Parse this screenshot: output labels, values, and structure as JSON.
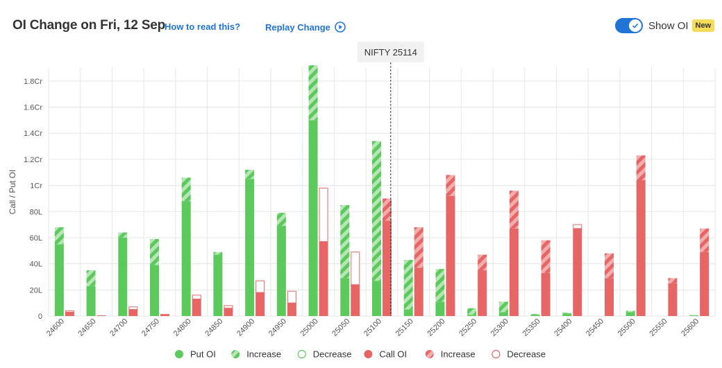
{
  "header": {
    "title": "OI Change on Fri, 12 Sep",
    "how_to_read": "How to read this?",
    "replay": "Replay Change",
    "toggle_label": "Show OI",
    "badge": "New"
  },
  "chart_data": {
    "type": "bar",
    "ylabel": "Call / Put OI",
    "spot_label": "NIFTY 25114",
    "spot_value": 25114,
    "ylim": [
      0,
      1.9
    ],
    "y_unit": "Cr",
    "y_ticks": [
      {
        "v": 0,
        "label": "0"
      },
      {
        "v": 0.2,
        "label": "20L"
      },
      {
        "v": 0.4,
        "label": "40L"
      },
      {
        "v": 0.6,
        "label": "60L"
      },
      {
        "v": 0.8,
        "label": "80L"
      },
      {
        "v": 1.0,
        "label": "1Cr"
      },
      {
        "v": 1.2,
        "label": "1.2Cr"
      },
      {
        "v": 1.4,
        "label": "1.4Cr"
      },
      {
        "v": 1.6,
        "label": "1.6Cr"
      },
      {
        "v": 1.8,
        "label": "1.8Cr"
      }
    ],
    "categories": [
      "24600",
      "24650",
      "24700",
      "24750",
      "24800",
      "24850",
      "24900",
      "24950",
      "25000",
      "25050",
      "25100",
      "25150",
      "25200",
      "25250",
      "25300",
      "25350",
      "25400",
      "25450",
      "25500",
      "25550",
      "25600"
    ],
    "series": [
      {
        "name": "Put OI",
        "base": [
          0.55,
          0.23,
          0.6,
          0.39,
          0.88,
          0.47,
          1.05,
          0.69,
          1.5,
          0.29,
          0.27,
          0.05,
          0.11,
          0.01,
          0.03,
          0.01,
          0.02,
          0,
          0.03,
          0,
          0.005
        ],
        "increase": [
          0.13,
          0.12,
          0.04,
          0.2,
          0.18,
          0.02,
          0.07,
          0.1,
          0.42,
          0.56,
          1.07,
          0.38,
          0.25,
          0.05,
          0.08,
          0.005,
          0.005,
          0,
          0.01,
          0,
          0.002
        ],
        "decrease": [
          0,
          0,
          0,
          0,
          0,
          0,
          0,
          0,
          0,
          0,
          0,
          0,
          0,
          0,
          0,
          0,
          0,
          0,
          0,
          0,
          0
        ]
      },
      {
        "name": "Call OI",
        "base": [
          0.03,
          0.005,
          0.05,
          0.015,
          0.13,
          0.06,
          0.18,
          0.1,
          0.57,
          0.24,
          0.73,
          0.37,
          0.92,
          0.35,
          0.67,
          0.33,
          0.67,
          0.29,
          1.04,
          0.25,
          0.49
        ],
        "increase": [
          0,
          0,
          0,
          0,
          0,
          0,
          0,
          0,
          0,
          0,
          0.17,
          0.31,
          0.16,
          0.12,
          0.29,
          0.25,
          0,
          0.19,
          0.19,
          0.04,
          0.18
        ],
        "decrease": [
          0.01,
          0,
          0.02,
          0,
          0.03,
          0.02,
          0.09,
          0.09,
          0.41,
          0.25,
          0,
          0,
          0,
          0,
          0,
          0,
          0.03,
          0,
          0,
          0,
          0
        ]
      }
    ],
    "legend": [
      {
        "label": "Put OI",
        "kind": "put-solid"
      },
      {
        "label": "Increase",
        "kind": "put-hatch"
      },
      {
        "label": "Decrease",
        "kind": "put-outline"
      },
      {
        "label": "Call OI",
        "kind": "call-solid"
      },
      {
        "label": "Increase",
        "kind": "call-hatch"
      },
      {
        "label": "Decrease",
        "kind": "call-outline"
      }
    ],
    "colors": {
      "put": "#5cc95c",
      "put_light": "#b6e6b6",
      "call": "#e66666",
      "call_light": "#f2aeae",
      "grid": "#e6e6e6"
    }
  }
}
